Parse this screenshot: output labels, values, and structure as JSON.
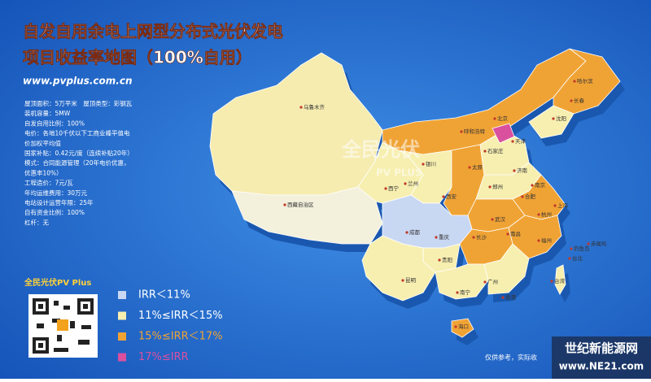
{
  "header": {
    "title_lines": [
      "自发自用余电上网型分布式光伏发电",
      "项目收益率地图（100%自用）"
    ],
    "url": "www.pvplus.com.cn"
  },
  "parameters": [
    "屋顶面积：5万平米　屋顶类型：彩钢瓦",
    "装机容量：5MW",
    "自发自用比例：100%",
    "电价：各地10千伏以下工商业峰平值电",
    "价加权平均值",
    "国家补贴：0.42元/度（连续补贴20年）",
    "模式：合同能源管理（20年电价优惠，",
    "优惠率10%）",
    "工程造价：7元/瓦",
    "年均运维费用：30万元",
    "电站设计运营年限：25年",
    "自有资金比例：100%",
    "杠杆：无"
  ],
  "brand": "全民光伏PV Plus",
  "legend": [
    {
      "label": "IRR＜11%",
      "color": "#c8d7f2"
    },
    {
      "label": "11%≤IRR＜15%",
      "color": "#f7efb0"
    },
    {
      "label": "15%≤IRR＜17%",
      "color": "#f0a335"
    },
    {
      "label": "17%≤IRR",
      "color": "#d9509f"
    }
  ],
  "map": {
    "labels": [
      "乌鲁木齐",
      "西藏自治区",
      "兰州",
      "西宁",
      "银川",
      "呼和浩特",
      "北京",
      "天津",
      "石家庄",
      "太原",
      "济南",
      "西安",
      "郑州",
      "合肥",
      "南京",
      "上海",
      "杭州",
      "武汉",
      "长沙",
      "南昌",
      "福州",
      "成都",
      "重庆",
      "贵阳",
      "昆明",
      "南宁",
      "广州",
      "香港",
      "海口",
      "台湾",
      "台北",
      "钓鱼岛",
      "赤尾屿",
      "沈阳",
      "长春",
      "哈尔滨"
    ],
    "watermark": [
      "全民光伏",
      "PV PLUS"
    ]
  },
  "footer": {
    "note": "仅供参考，实际收",
    "site_name": "世纪新能源网",
    "site_url": "www.NE21.com"
  }
}
